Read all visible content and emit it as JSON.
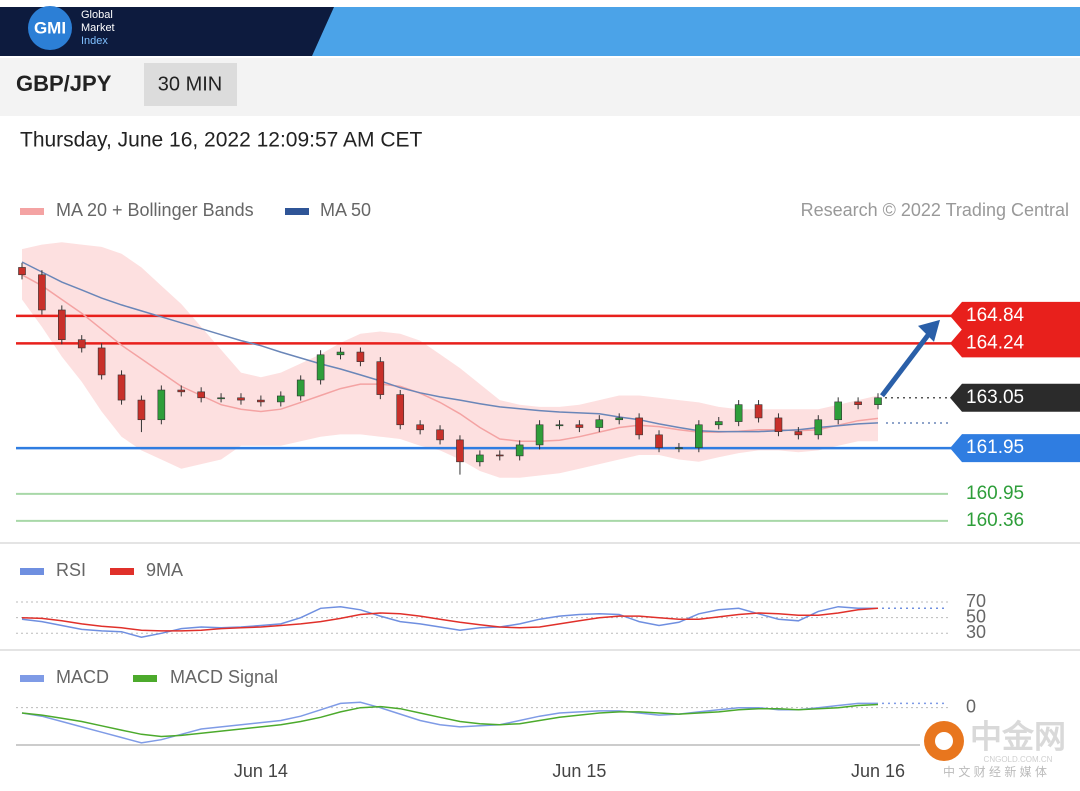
{
  "header": {
    "logo": "GMI",
    "brand_lines": [
      "Global",
      "Market",
      "Index"
    ]
  },
  "toolbar": {
    "pair": "GBP/JPY",
    "timeframe": "30 MIN"
  },
  "timestamp": "Thursday, June 16, 2022 12:09:57 AM CET",
  "watermark": {
    "name": "中金网",
    "domain": "CNGOLD.COM.CN",
    "tagline": "中 文 财 经 新 媒 体"
  },
  "chart_data": [
    {
      "type": "candlestick",
      "credit": "Research © 2022 Trading Central",
      "categories": [
        null,
        null,
        null,
        null,
        null,
        null,
        null,
        null,
        null,
        null,
        null,
        null,
        "Jun 14",
        null,
        null,
        null,
        null,
        null,
        null,
        null,
        null,
        null,
        null,
        null,
        null,
        null,
        null,
        null,
        "Jun 15",
        null,
        null,
        null,
        null,
        null,
        null,
        null,
        null,
        null,
        null,
        null,
        null,
        null,
        null,
        "Jun 16"
      ],
      "up_color": "#2e9e3a",
      "down_color": "#c8302a",
      "open": [
        165.9,
        165.74,
        164.97,
        164.32,
        164.14,
        163.55,
        163.0,
        162.57,
        163.22,
        163.18,
        163.05,
        163.05,
        163.0,
        162.96,
        163.09,
        163.44,
        163.99,
        164.05,
        163.84,
        163.12,
        162.46,
        162.35,
        162.13,
        161.65,
        161.8,
        161.78,
        162.02,
        162.46,
        162.46,
        162.4,
        162.57,
        162.61,
        162.24,
        161.96,
        161.96,
        162.46,
        162.53,
        162.9,
        162.61,
        162.31,
        162.24,
        162.57,
        162.96,
        162.9
      ],
      "high": [
        166.0,
        165.84,
        165.07,
        164.42,
        164.24,
        163.65,
        163.1,
        163.32,
        163.32,
        163.28,
        163.15,
        163.15,
        163.1,
        163.19,
        163.54,
        164.09,
        164.15,
        164.15,
        163.94,
        163.22,
        162.56,
        162.45,
        162.23,
        161.9,
        161.9,
        162.12,
        162.56,
        162.56,
        162.56,
        162.67,
        162.71,
        162.71,
        162.34,
        162.06,
        162.56,
        162.63,
        163.0,
        163.0,
        162.71,
        162.41,
        162.67,
        163.06,
        163.06,
        163.15
      ],
      "low": [
        165.64,
        164.87,
        164.22,
        164.04,
        163.45,
        162.9,
        162.3,
        162.47,
        163.08,
        162.95,
        162.95,
        162.9,
        162.86,
        162.86,
        162.99,
        163.34,
        163.89,
        163.74,
        163.02,
        162.36,
        162.25,
        162.03,
        161.37,
        161.55,
        161.68,
        161.68,
        161.92,
        162.36,
        162.3,
        162.3,
        162.47,
        162.14,
        161.86,
        161.86,
        161.86,
        162.36,
        162.43,
        162.51,
        162.21,
        162.14,
        162.14,
        162.47,
        162.8,
        162.8
      ],
      "close": [
        165.74,
        164.97,
        164.32,
        164.14,
        163.55,
        163.0,
        162.57,
        163.22,
        163.18,
        163.05,
        163.05,
        163.0,
        162.96,
        163.09,
        163.44,
        163.99,
        164.05,
        163.84,
        163.12,
        162.46,
        162.35,
        162.13,
        161.65,
        161.8,
        161.78,
        162.02,
        162.46,
        162.46,
        162.4,
        162.57,
        162.61,
        162.24,
        161.96,
        161.96,
        162.46,
        162.53,
        162.9,
        162.61,
        162.31,
        162.24,
        162.57,
        162.96,
        162.9,
        163.05
      ],
      "series": [
        {
          "name": "MA 20 + Bollinger Bands",
          "color": "#f4a3a3",
          "band_color": "#fde0e0",
          "values": [
            165.74,
            165.5,
            165.2,
            164.9,
            164.55,
            164.2,
            163.9,
            163.6,
            163.3,
            163.1,
            162.9,
            162.8,
            162.75,
            162.8,
            162.95,
            163.1,
            163.25,
            163.35,
            163.35,
            163.3,
            163.15,
            162.95,
            162.7,
            162.4,
            162.15,
            162.1,
            162.1,
            162.12,
            162.2,
            162.3,
            162.4,
            162.45,
            162.42,
            162.35,
            162.3,
            162.3,
            162.32,
            162.35,
            162.35,
            162.33,
            162.35,
            162.45,
            162.55,
            162.6
          ],
          "upper": [
            166.3,
            166.4,
            166.45,
            166.4,
            166.35,
            166.2,
            165.9,
            165.5,
            165.1,
            164.6,
            164.1,
            163.6,
            163.5,
            163.6,
            163.8,
            164.0,
            164.25,
            164.45,
            164.5,
            164.45,
            164.3,
            164.0,
            163.7,
            163.35,
            163.0,
            162.9,
            162.85,
            162.85,
            162.9,
            163.0,
            163.1,
            163.1,
            163.05,
            163.0,
            162.95,
            162.85,
            162.8,
            162.8,
            162.8,
            162.8,
            162.8,
            162.9,
            163.0,
            163.1
          ],
          "lower": [
            165.2,
            164.6,
            163.95,
            163.4,
            162.75,
            162.2,
            161.9,
            161.7,
            161.5,
            161.6,
            161.7,
            162.0,
            162.0,
            162.0,
            162.1,
            162.2,
            162.25,
            162.25,
            162.2,
            162.15,
            162.0,
            161.9,
            161.7,
            161.45,
            161.3,
            161.3,
            161.35,
            161.4,
            161.5,
            161.6,
            161.7,
            161.8,
            161.8,
            161.7,
            161.65,
            161.75,
            161.84,
            161.9,
            161.9,
            161.86,
            161.9,
            162.0,
            162.1,
            162.1
          ]
        },
        {
          "name": "MA 50",
          "color": "#6a86b8",
          "legend_color": "#2f5597",
          "values": [
            166.02,
            165.8,
            165.58,
            165.41,
            165.23,
            165.08,
            164.95,
            164.82,
            164.69,
            164.56,
            164.43,
            164.3,
            164.19,
            164.05,
            163.92,
            163.79,
            163.68,
            163.55,
            163.42,
            163.27,
            163.16,
            163.07,
            163.0,
            162.92,
            162.85,
            162.81,
            162.77,
            162.74,
            162.72,
            162.7,
            162.63,
            162.57,
            162.48,
            162.4,
            162.33,
            162.31,
            162.31,
            162.31,
            162.33,
            162.35,
            162.4,
            162.44,
            162.48,
            162.5
          ]
        }
      ],
      "ylim": [
        160.05,
        166.5
      ],
      "levels": [
        {
          "value": 164.84,
          "color": "#e8201c",
          "boxed": true
        },
        {
          "value": 164.24,
          "color": "#e8201c",
          "boxed": true
        },
        {
          "value": 163.05,
          "color": "#2b2b2b",
          "boxed": true,
          "dotted": true
        },
        {
          "value": 161.95,
          "color": "#2f7de1",
          "boxed": true
        },
        {
          "value": 160.95,
          "color": "#2e9e3a",
          "line_color": "#a8d8a8",
          "boxed": false
        },
        {
          "value": 160.36,
          "color": "#2e9e3a",
          "line_color": "#a8d8a8",
          "boxed": false
        }
      ],
      "arrow_color": "#2a5fa8"
    },
    {
      "type": "line",
      "series": [
        {
          "name": "RSI",
          "color": "#6f8fe0",
          "values": [
            48,
            45,
            40,
            35,
            33,
            32,
            25,
            30,
            36,
            38,
            37,
            38,
            40,
            42,
            50,
            62,
            64,
            60,
            52,
            45,
            42,
            38,
            34,
            37,
            38,
            42,
            48,
            52,
            54,
            55,
            54,
            45,
            40,
            44,
            55,
            60,
            62,
            55,
            48,
            46,
            58,
            64,
            62,
            62
          ]
        },
        {
          "name": "9MA",
          "color": "#e0302a",
          "values": [
            50,
            49,
            46,
            42,
            39,
            37,
            34,
            33,
            33,
            34,
            36,
            37,
            38,
            40,
            42,
            45,
            49,
            54,
            56,
            55,
            52,
            48,
            44,
            41,
            38,
            37,
            38,
            42,
            46,
            50,
            52,
            52,
            50,
            48,
            48,
            51,
            54,
            56,
            55,
            53,
            53,
            56,
            60,
            62
          ]
        }
      ],
      "ylim": [
        15,
        79
      ],
      "yticks": [
        30,
        50,
        70
      ],
      "grid": true
    },
    {
      "type": "line",
      "series": [
        {
          "name": "MACD",
          "color": "#7f9be6",
          "values": [
            -0.05,
            -0.08,
            -0.13,
            -0.18,
            -0.23,
            -0.28,
            -0.33,
            -0.3,
            -0.25,
            -0.2,
            -0.18,
            -0.16,
            -0.14,
            -0.12,
            -0.08,
            -0.02,
            0.04,
            0.05,
            0.0,
            -0.06,
            -0.12,
            -0.16,
            -0.18,
            -0.17,
            -0.16,
            -0.12,
            -0.08,
            -0.05,
            -0.04,
            -0.03,
            -0.03,
            -0.05,
            -0.07,
            -0.06,
            -0.04,
            -0.02,
            0.0,
            0.0,
            -0.02,
            -0.02,
            0.0,
            0.02,
            0.04,
            0.04
          ]
        },
        {
          "name": "MACD Signal",
          "color": "#4caa2c",
          "values": [
            -0.05,
            -0.07,
            -0.1,
            -0.13,
            -0.17,
            -0.21,
            -0.25,
            -0.27,
            -0.26,
            -0.24,
            -0.22,
            -0.2,
            -0.18,
            -0.16,
            -0.13,
            -0.09,
            -0.04,
            0.0,
            0.01,
            -0.01,
            -0.05,
            -0.09,
            -0.13,
            -0.15,
            -0.16,
            -0.15,
            -0.12,
            -0.09,
            -0.07,
            -0.05,
            -0.04,
            -0.04,
            -0.05,
            -0.06,
            -0.05,
            -0.04,
            -0.02,
            -0.01,
            -0.01,
            -0.02,
            -0.01,
            0.0,
            0.02,
            0.03
          ]
        }
      ],
      "ylim": [
        -0.35,
        0.4
      ],
      "yticks": [
        0
      ],
      "grid": true
    }
  ]
}
